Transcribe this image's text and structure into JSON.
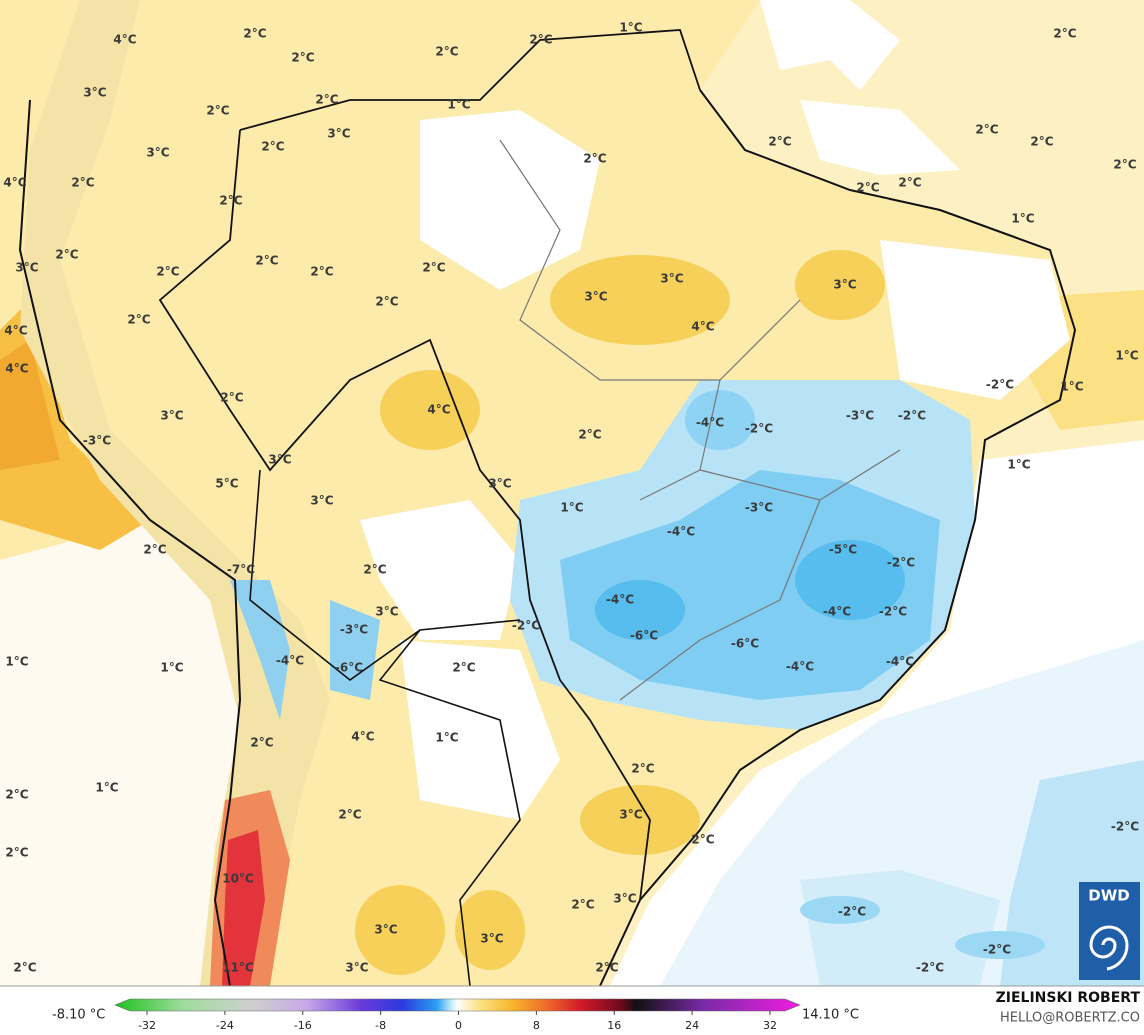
{
  "map": {
    "contour_labels": [
      "4°C",
      "2°C",
      "2°C",
      "2°C",
      "2°C",
      "1°C",
      "2°C",
      "3°C",
      "2°C",
      "2°C",
      "1°C",
      "3°C",
      "2°C",
      "3°C",
      "2°C",
      "2°C",
      "2°C",
      "2°C",
      "2°C",
      "4°C",
      "2°C",
      "2°C",
      "2°C",
      "2°C",
      "1°C",
      "2°C",
      "3°C",
      "2°C",
      "2°C",
      "2°C",
      "2°C",
      "3°C",
      "3°C",
      "3°C",
      "2°C",
      "2°C",
      "4°C",
      "4°C",
      "1°C",
      "4°C",
      "-2°C",
      "1°C",
      "2°C",
      "4°C",
      "3°C",
      "-4°C",
      "-2°C",
      "-3°C",
      "-2°C",
      "-3°C",
      "2°C",
      "3°C",
      "1°C",
      "5°C",
      "3°C",
      "3°C",
      "1°C",
      "-3°C",
      "-4°C",
      "2°C",
      "-5°C",
      "-2°C",
      "-7°C",
      "2°C",
      "-4°C",
      "3°C",
      "-4°C",
      "-2°C",
      "-2°C",
      "-3°C",
      "-6°C",
      "-6°C",
      "1°C",
      "1°C",
      "-4°C",
      "-6°C",
      "2°C",
      "-4°C",
      "-4°C",
      "4°C",
      "1°C",
      "2°C",
      "2°C",
      "1°C",
      "2°C",
      "3°C",
      "2°C",
      "2°C",
      "-2°C",
      "2°C",
      "10°C",
      "2°C",
      "3°C",
      "-2°C",
      "3°C",
      "3°C",
      "-2°C",
      "2°C",
      "11°C",
      "3°C",
      "2°C",
      "-2°C"
    ]
  },
  "colorbar": {
    "min_label": "-8.10 °C",
    "max_label": "14.10 °C",
    "ticks": [
      -32,
      -24,
      -16,
      -8,
      0,
      8,
      16,
      24,
      32
    ]
  },
  "credit": {
    "author": "ZIELINSKI ROBERT",
    "email": "HELLO@ROBERTZ.CO"
  },
  "logo": {
    "text": "DWD"
  }
}
